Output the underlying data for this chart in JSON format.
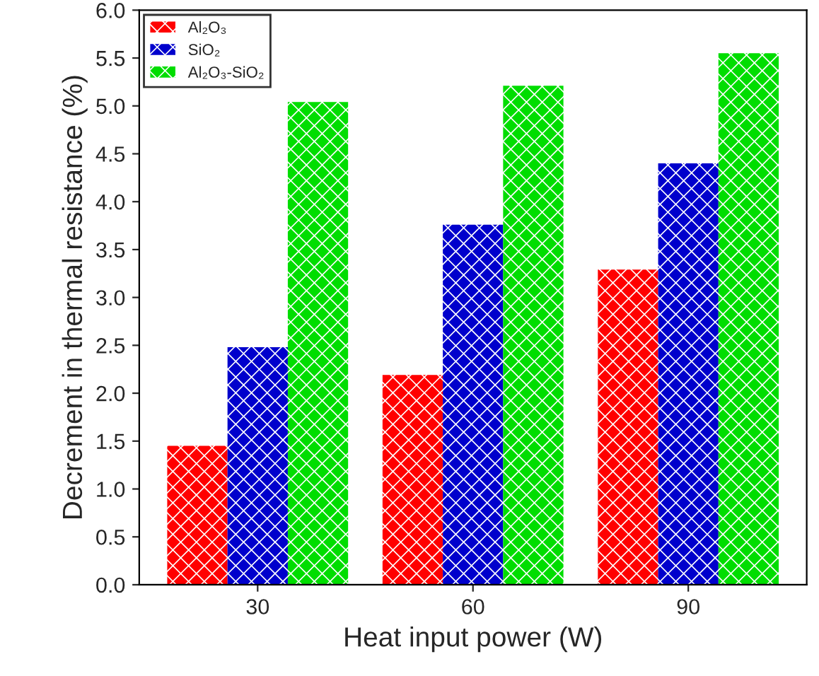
{
  "chart_data": {
    "type": "bar",
    "xlabel": "Heat input power (W)",
    "ylabel": "Decrement in thermal resistance (%)",
    "categories": [
      "30",
      "60",
      "90"
    ],
    "series": [
      {
        "name": "Al₂O₃",
        "color": "#ff0000",
        "values": [
          1.45,
          2.19,
          3.29
        ]
      },
      {
        "name": "SiO₂",
        "color": "#0000cc",
        "values": [
          2.48,
          3.76,
          4.4
        ]
      },
      {
        "name": "Al₂O₃-SiO₂",
        "color": "#00dd00",
        "values": [
          5.04,
          5.21,
          5.55
        ]
      }
    ],
    "ylim": [
      0,
      6
    ],
    "yticks": [
      {
        "value": 0,
        "label": "0.0"
      },
      {
        "value": 0.5,
        "label": "0.5"
      },
      {
        "value": 1,
        "label": "1.0"
      },
      {
        "value": 1.5,
        "label": "1.5"
      },
      {
        "value": 2,
        "label": "2.0"
      },
      {
        "value": 2.5,
        "label": "2.5"
      },
      {
        "value": 3,
        "label": "3.0"
      },
      {
        "value": 3.5,
        "label": "3.5"
      },
      {
        "value": 4,
        "label": "4.0"
      },
      {
        "value": 4.5,
        "label": "4.5"
      },
      {
        "value": 5,
        "label": "5.0"
      },
      {
        "value": 5.5,
        "label": "5.5"
      },
      {
        "value": 6,
        "label": "6.0"
      }
    ],
    "legend": "top left",
    "grid": false
  }
}
